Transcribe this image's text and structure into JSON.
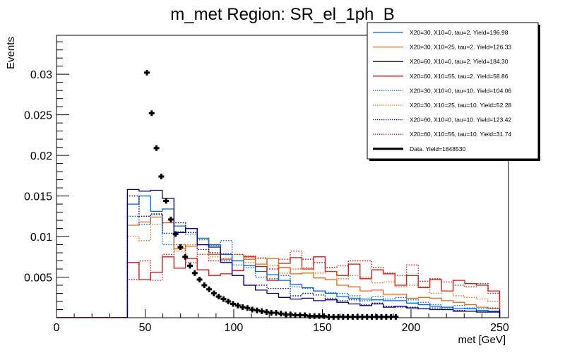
{
  "chart_data": {
    "type": "line",
    "title": "m_met Region: SR_el_1ph_B",
    "xlabel": "met [GeV]",
    "ylabel": "Events",
    "xlim": [
      0,
      255
    ],
    "ylim": [
      0,
      0.0348
    ],
    "xticks": [
      0,
      50,
      100,
      150,
      200,
      250
    ],
    "xtick_labels": [
      "0",
      "50",
      "100",
      "150",
      "200",
      "250"
    ],
    "yticks": [
      0.005,
      0.01,
      0.015,
      0.02,
      0.025,
      0.03
    ],
    "ytick_labels": [
      "0.005",
      "0.01",
      "0.015",
      "0.02",
      "0.025",
      "0.03"
    ],
    "grid": false,
    "legend_position": "top-right",
    "bin_edges_start": 40,
    "bin_width": 6.5625,
    "series": [
      {
        "name": "X20=30, X10=0, tau=2. Yield=196.98",
        "color": "#0066dd",
        "style": "solid",
        "values": [
          0.014,
          0.015,
          0.0131,
          0.0134,
          0.0113,
          0.011,
          0.0098,
          0.009,
          0.0078,
          0.007,
          0.0064,
          0.0057,
          0.0053,
          0.0046,
          0.0041,
          0.0037,
          0.0033,
          0.003,
          0.0026,
          0.0024,
          0.0023,
          0.0022,
          0.0021,
          0.0021,
          0.0018,
          0.0016,
          0.0014,
          0.0013,
          0.0011,
          0.0011,
          0.0009,
          0.0008
        ]
      },
      {
        "name": "X20=30, X10=25, tau=2. Yield=126.33",
        "color": "#ee6611",
        "style": "solid",
        "values": [
          0.0114,
          0.0118,
          0.0124,
          0.0117,
          0.0085,
          0.0088,
          0.009,
          0.0078,
          0.0072,
          0.007,
          0.0072,
          0.0066,
          0.0073,
          0.0062,
          0.0054,
          0.0055,
          0.0049,
          0.0047,
          0.004,
          0.0038,
          0.0033,
          0.0034,
          0.0029,
          0.0029,
          0.0024,
          0.0025,
          0.0024,
          0.0021,
          0.0019,
          0.0016,
          0.0013,
          0.0011
        ]
      },
      {
        "name": "X20=60, X10=0, tau=2. Yield=184.30",
        "color": "#000088",
        "style": "solid",
        "values": [
          0.0158,
          0.0156,
          0.0157,
          0.0147,
          0.0105,
          0.011,
          0.009,
          0.0087,
          0.0068,
          0.0052,
          0.004,
          0.0034,
          0.003,
          0.0025,
          0.0023,
          0.0024,
          0.0021,
          0.0022,
          0.0019,
          0.0017,
          0.0015,
          0.0017,
          0.0013,
          0.0014,
          0.0012,
          0.0011,
          0.001,
          0.001,
          0.0008,
          0.0008,
          0.0007,
          0.0007
        ]
      },
      {
        "name": "X20=60, X10=55, tau=2. Yield=58.86",
        "color": "#dd1111",
        "style": "solid",
        "values": [
          0.0068,
          0.0047,
          0.0056,
          0.0075,
          0.0061,
          0.0073,
          0.0059,
          0.0052,
          0.0054,
          0.0058,
          0.0075,
          0.0063,
          0.0046,
          0.0067,
          0.0074,
          0.006,
          0.0075,
          0.0057,
          0.0052,
          0.0066,
          0.0048,
          0.0059,
          0.0054,
          0.004,
          0.0052,
          0.0037,
          0.0047,
          0.0033,
          0.0046,
          0.0042,
          0.004,
          0.0033
        ]
      },
      {
        "name": "X20=30, X10=0, tau=10. Yield=104.06",
        "color": "#0066dd",
        "style": "dotted",
        "values": [
          0.0125,
          0.0115,
          0.0127,
          0.009,
          0.0106,
          0.0103,
          0.0096,
          0.0089,
          0.0095,
          0.0065,
          0.0062,
          0.005,
          0.0048,
          0.0052,
          0.0038,
          0.0036,
          0.0033,
          0.0031,
          0.003,
          0.0027,
          0.0021,
          0.0026,
          0.0023,
          0.0025,
          0.0022,
          0.0019,
          0.0016,
          0.0012,
          0.0015,
          0.0012,
          0.0011,
          0.0012
        ]
      },
      {
        "name": "X20=30, X10=25, tau=10. Yield=52.28",
        "color": "#ee6611",
        "style": "dotted",
        "values": [
          0.01,
          0.0095,
          0.0115,
          0.0117,
          0.0082,
          0.009,
          0.0078,
          0.0075,
          0.0073,
          0.0078,
          0.0068,
          0.0074,
          0.0064,
          0.0055,
          0.006,
          0.0062,
          0.0055,
          0.0057,
          0.0048,
          0.0052,
          0.005,
          0.0043,
          0.0044,
          0.0038,
          0.004,
          0.0038,
          0.003,
          0.0033,
          0.0027,
          0.0025,
          0.0023,
          0.002
        ]
      },
      {
        "name": "X20=60, X10=0, tau=10. Yield=123.42",
        "color": "#000088",
        "style": "dotted",
        "values": [
          0.015,
          0.0125,
          0.0128,
          0.0104,
          0.0117,
          0.0105,
          0.0084,
          0.008,
          0.007,
          0.0052,
          0.004,
          0.004,
          0.0036,
          0.0036,
          0.0027,
          0.003,
          0.0028,
          0.0024,
          0.0021,
          0.0022,
          0.0016,
          0.0018,
          0.0014,
          0.0013,
          0.0013,
          0.0011,
          0.0012,
          0.001,
          0.0009,
          0.0008,
          0.0007,
          0.0007
        ]
      },
      {
        "name": "X20=60, X10=55, tau=10. Yield=31.74",
        "color": "#dd1111",
        "style": "dotted",
        "values": [
          0.0047,
          0.007,
          0.0046,
          0.0078,
          0.009,
          0.0068,
          0.0078,
          0.007,
          0.0079,
          0.0078,
          0.0076,
          0.0073,
          0.006,
          0.0072,
          0.0082,
          0.0072,
          0.0068,
          0.0062,
          0.0064,
          0.007,
          0.007,
          0.0062,
          0.0055,
          0.0052,
          0.0065,
          0.0045,
          0.0048,
          0.0044,
          0.004,
          0.0038,
          0.0042,
          0.003
        ]
      }
    ],
    "data_points": {
      "name": "Data. Yield=1848530",
      "color": "#000000",
      "x_start": 51.0,
      "x_step": 2.7,
      "values": [
        0.0302,
        0.0252,
        0.0209,
        0.0174,
        0.0144,
        0.0121,
        0.0103,
        0.0087,
        0.0075,
        0.0064,
        0.0055,
        0.0047,
        0.004,
        0.0035,
        0.003,
        0.0026,
        0.0023,
        0.002,
        0.0017,
        0.0015,
        0.0013,
        0.0012,
        0.001,
        0.0009,
        0.0008,
        0.0007,
        0.0006,
        0.0006,
        0.0005,
        0.0004,
        0.0004,
        0.0003,
        0.0003,
        0.0003,
        0.0002,
        0.0002,
        0.0002,
        0.0002,
        0.0001,
        0.0001,
        0.0001,
        0.0001,
        0.0001,
        0.0001,
        0.0001,
        0.0001,
        0.0001,
        0.0001,
        0.0001,
        0.0001,
        0.0001,
        0.0001,
        0.0001
      ]
    }
  }
}
